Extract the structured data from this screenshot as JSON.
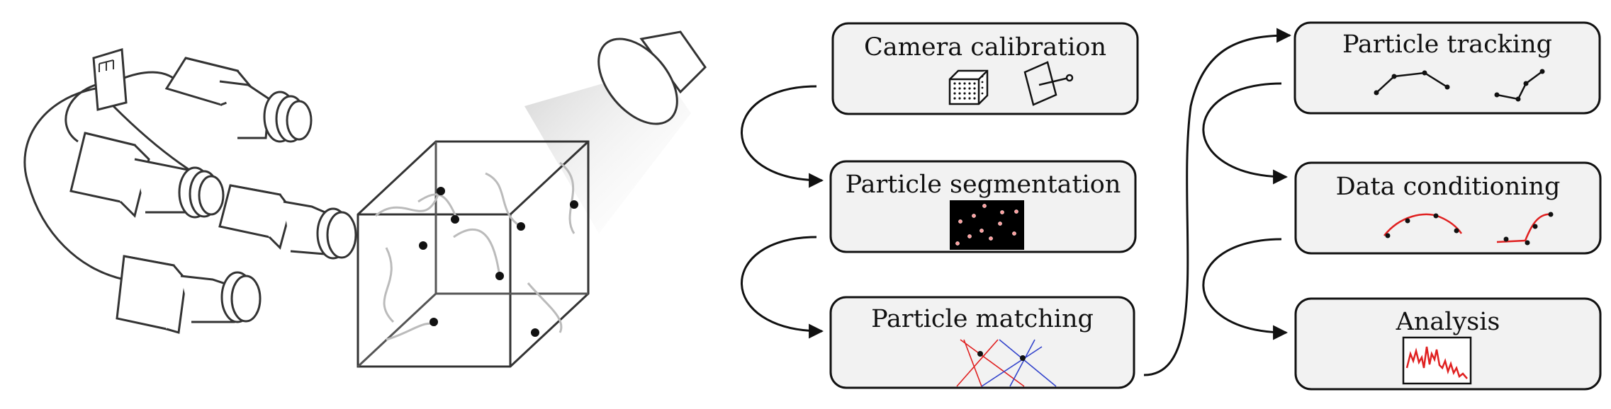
{
  "steps": [
    {
      "id": "camera-calibration",
      "label": "Camera calibration"
    },
    {
      "id": "particle-segmentation",
      "label": "Particle segmentation"
    },
    {
      "id": "particle-matching",
      "label": "Particle matching"
    },
    {
      "id": "particle-tracking",
      "label": "Particle tracking"
    },
    {
      "id": "data-conditioning",
      "label": "Data conditioning"
    },
    {
      "id": "analysis",
      "label": "Analysis"
    }
  ],
  "colors": {
    "box_fill": "#f2f2f2",
    "stroke": "#111111",
    "red": "#e02020",
    "blue": "#3344cc",
    "segmentation_bg": "#000000",
    "particle_dot": "#ff9999"
  }
}
